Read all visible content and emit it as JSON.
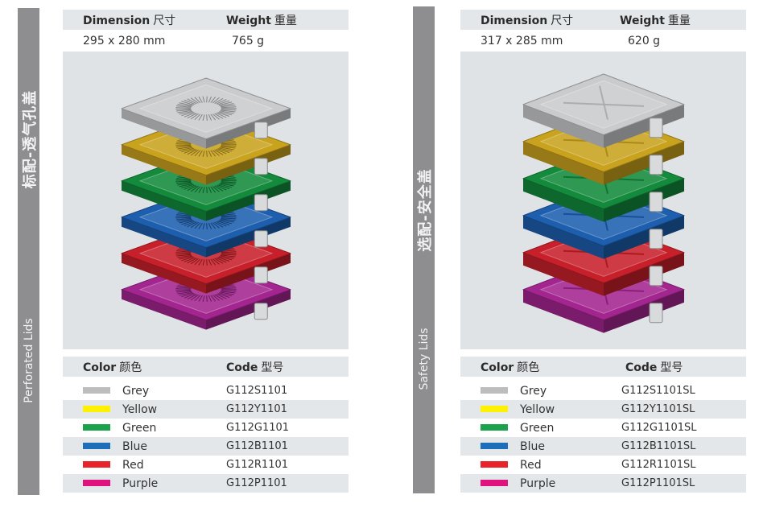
{
  "left": {
    "side_cn": "标配-透气孔盖",
    "side_en": "Perforated Lids",
    "spec": {
      "dimension_label": "Dimension",
      "dimension_cn": "尺寸",
      "weight_label": "Weight",
      "weight_cn": "重量",
      "dimension_value": "295 x 280 mm",
      "weight_value": "765 g"
    },
    "table": {
      "color_label": "Color",
      "color_cn": "颜色",
      "code_label": "Code",
      "code_cn": "型号",
      "rows": [
        {
          "name": "Grey",
          "code": "G112S1101",
          "color": "#bdbdbd"
        },
        {
          "name": "Yellow",
          "code": "G112Y1101",
          "color": "#fff200"
        },
        {
          "name": "Green",
          "code": "G112G1101",
          "color": "#1aa34a"
        },
        {
          "name": "Blue",
          "code": "G112B1101",
          "color": "#1c6fb8"
        },
        {
          "name": "Red",
          "code": "G112R1101",
          "color": "#e8232a"
        },
        {
          "name": "Purple",
          "code": "G112P1101",
          "color": "#e0127e"
        }
      ]
    }
  },
  "right": {
    "side_cn": "选配-安全盖",
    "side_en": "Safety Lids",
    "spec": {
      "dimension_label": "Dimension",
      "dimension_cn": "尺寸",
      "weight_label": "Weight",
      "weight_cn": "重量",
      "dimension_value": "317 x 285 mm",
      "weight_value": "620 g"
    },
    "table": {
      "color_label": "Color",
      "color_cn": "颜色",
      "code_label": "Code",
      "code_cn": "型号",
      "rows": [
        {
          "name": "Grey",
          "code": "G112S1101SL",
          "color": "#bdbdbd"
        },
        {
          "name": "Yellow",
          "code": "G112Y1101SL",
          "color": "#fff200"
        },
        {
          "name": "Green",
          "code": "G112G1101SL",
          "color": "#1aa34a"
        },
        {
          "name": "Blue",
          "code": "G112B1101SL",
          "color": "#1c6fb8"
        },
        {
          "name": "Red",
          "code": "G112R1101SL",
          "color": "#e8232a"
        },
        {
          "name": "Purple",
          "code": "G112P1101SL",
          "color": "#e0127e"
        }
      ]
    }
  },
  "lid_colors": {
    "grey": "#c9cbcd",
    "yellow": "#c9a21e",
    "green": "#138a3c",
    "blue": "#1d5fae",
    "red": "#c8202a",
    "purple": "#a3258f"
  }
}
